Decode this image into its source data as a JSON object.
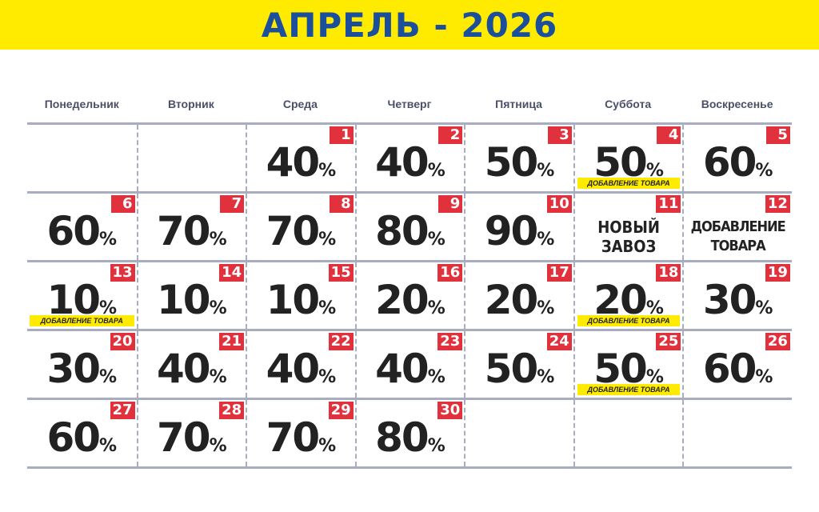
{
  "title": "АПРЕЛЬ - 2026",
  "colors": {
    "banner": "#ffeb00",
    "title": "#1b4f9c",
    "badge": "#e0313d",
    "note": "#ffeb00"
  },
  "weekdays": [
    "Понедельник",
    "Вторник",
    "Среда",
    "Четверг",
    "Пятница",
    "Суббота",
    "Воскресенье"
  ],
  "percent_sign": "%",
  "weeks": [
    [
      {},
      {},
      {
        "day": "1",
        "value": "40"
      },
      {
        "day": "2",
        "value": "40"
      },
      {
        "day": "3",
        "value": "50"
      },
      {
        "day": "4",
        "value": "50",
        "note": "ДОБАВЛЕНИЕ ТОВАРА"
      },
      {
        "day": "5",
        "value": "60"
      }
    ],
    [
      {
        "day": "6",
        "value": "60"
      },
      {
        "day": "7",
        "value": "70"
      },
      {
        "day": "8",
        "value": "70"
      },
      {
        "day": "9",
        "value": "80"
      },
      {
        "day": "10",
        "value": "90"
      },
      {
        "day": "11",
        "text": [
          "НОВЫЙ",
          "ЗАВОЗ"
        ]
      },
      {
        "day": "12",
        "text": [
          "ДОБАВЛЕНИЕ",
          "ТОВАРА"
        ]
      }
    ],
    [
      {
        "day": "13",
        "value": "10",
        "note": "ДОБАВЛЕНИЕ ТОВАРА"
      },
      {
        "day": "14",
        "value": "10"
      },
      {
        "day": "15",
        "value": "10"
      },
      {
        "day": "16",
        "value": "20"
      },
      {
        "day": "17",
        "value": "20"
      },
      {
        "day": "18",
        "value": "20",
        "note": "ДОБАВЛЕНИЕ ТОВАРА"
      },
      {
        "day": "19",
        "value": "30"
      }
    ],
    [
      {
        "day": "20",
        "value": "30"
      },
      {
        "day": "21",
        "value": "40"
      },
      {
        "day": "22",
        "value": "40"
      },
      {
        "day": "23",
        "value": "40"
      },
      {
        "day": "24",
        "value": "50"
      },
      {
        "day": "25",
        "value": "50",
        "note": "ДОБАВЛЕНИЕ ТОВАРА"
      },
      {
        "day": "26",
        "value": "60"
      }
    ],
    [
      {
        "day": "27",
        "value": "60"
      },
      {
        "day": "28",
        "value": "70"
      },
      {
        "day": "29",
        "value": "70"
      },
      {
        "day": "30",
        "value": "80"
      },
      {},
      {},
      {}
    ]
  ]
}
